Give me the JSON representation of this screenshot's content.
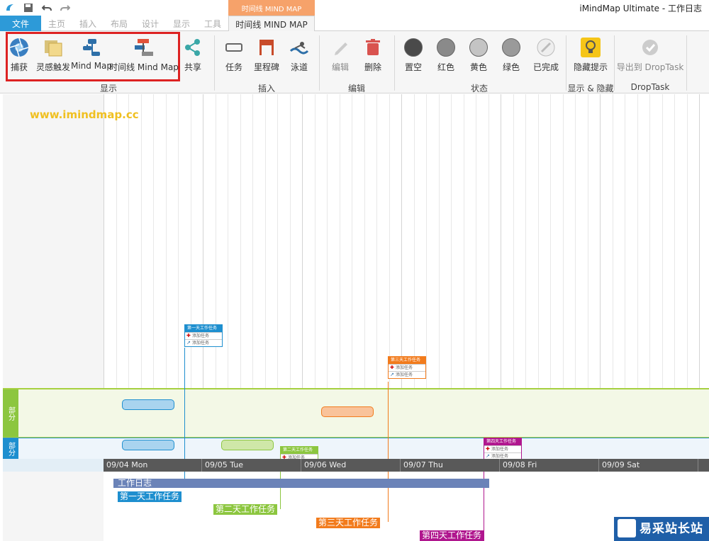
{
  "app_title": "iMindMap Ultimate - 工作日志",
  "context_tab_header": "时间线 MIND MAP",
  "tabs": [
    "文件",
    "主页",
    "插入",
    "布局",
    "设计",
    "显示",
    "工具"
  ],
  "active_tab": "时间线 MIND MAP",
  "ribbon": {
    "display_group": {
      "label": "显示",
      "buttons": [
        "捕获",
        "灵感触发",
        "Mind Map",
        "时间线 Mind Map",
        "共享"
      ]
    },
    "insert_group": {
      "label": "插入",
      "buttons": [
        "任务",
        "里程碑",
        "泳道"
      ]
    },
    "edit_group": {
      "label": "编辑",
      "buttons": [
        "编辑",
        "删除"
      ]
    },
    "status_group": {
      "label": "状态",
      "buttons": [
        "置空",
        "红色",
        "黄色",
        "绿色",
        "已完成"
      ]
    },
    "showhide_group": {
      "label": "显示 & 隐藏",
      "buttons": [
        "隐藏提示"
      ]
    },
    "droptask_group": {
      "label": "DropTask",
      "buttons": [
        "导出到 DropTask"
      ]
    }
  },
  "canvas": {
    "watermark_url": "www.imindmap.cc",
    "dates": [
      "09/04 Mon",
      "09/05 Tue",
      "09/06 Wed",
      "09/07 Thu",
      "09/08 Fri",
      "09/09 Sat"
    ],
    "main_bar": "工作日志",
    "task_labels": [
      "第一天工作任务",
      "第二天工作任务",
      "第三天工作任务",
      "第四天工作任务"
    ],
    "card_rows": [
      "添加任务",
      "添加任务"
    ],
    "swimlane_green": "部分",
    "swimlane_blue": "部分"
  },
  "colors": {
    "file_tab": "#2d9ad8",
    "context_orange": "#f6a26a",
    "task1": "#1e8fcf",
    "task2": "#8cc63f",
    "task3": "#f27b1c",
    "task4": "#b0168e"
  },
  "brand_logo": "易采站长站"
}
